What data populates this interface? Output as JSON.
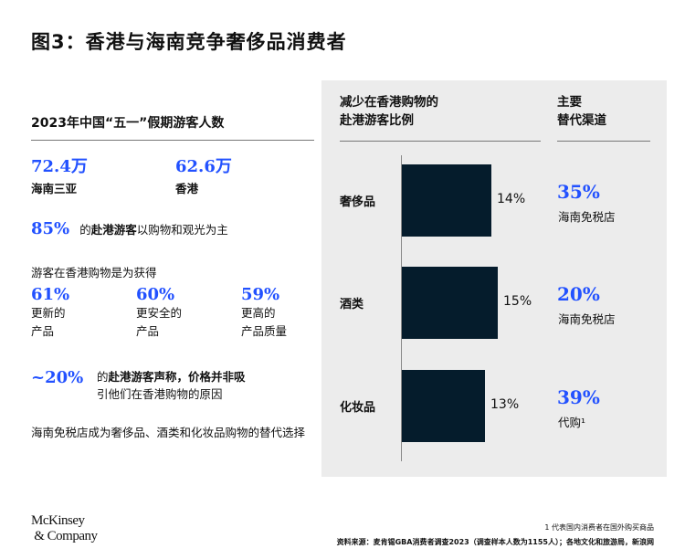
{
  "title": "图3：香港与海南竞争奢侈品消费者",
  "left": {
    "heading": "2023年中国“五一”假期游客人数",
    "visitors": [
      {
        "value": "72.4万",
        "place": "海南三亚"
      },
      {
        "value": "62.6万",
        "place": "香港"
      }
    ],
    "stat85": {
      "value": "85%",
      "pre": "的",
      "bold": "赴港游客",
      "post": "以购物和观光为主"
    },
    "reasons_heading": "游客在香港购物是为获得",
    "reasons": [
      {
        "value": "61%",
        "l1": "更新的",
        "l2": "产品"
      },
      {
        "value": "60%",
        "l1": "更安全的",
        "l2": "产品"
      },
      {
        "value": "59%",
        "l1": "更高的",
        "l2": "产品质量"
      }
    ],
    "stat20": {
      "value": "~20%",
      "pre": "的",
      "bold": "赴港游客声称，价格并非吸",
      "line2": "引他们在香港购物的原因"
    },
    "conclusion": "海南免税店成为奢侈品、酒类和化妆品购物的替代选择"
  },
  "panel": {
    "col1_l1": "减少在香港购物的",
    "col1_l2": "赴港游客比例",
    "col2_l1": "主要",
    "col2_l2": "替代渠道"
  },
  "chart_data": {
    "type": "bar",
    "orientation": "horizontal",
    "categories": [
      "奢侈品",
      "酒类",
      "化妆品"
    ],
    "values": [
      14,
      15,
      13
    ],
    "labels": [
      "14%",
      "15%",
      "13%"
    ],
    "alternatives": [
      {
        "value": "35%",
        "channel": "海南免税店"
      },
      {
        "value": "20%",
        "channel": "海南免税店"
      },
      {
        "value": "39%",
        "channel": "代购¹"
      }
    ]
  },
  "footer": {
    "logo": "McKinsey & Company",
    "note": "1 代表国内消费者在国外购买商品",
    "source": "资料来源：麦肯锡GBA消费者调查2023（调查样本人数为1155人）；各地文化和旅游局，新浪网"
  },
  "colors": {
    "accent": "#2251ff",
    "bar": "#051c2c",
    "panel": "#ececec"
  }
}
